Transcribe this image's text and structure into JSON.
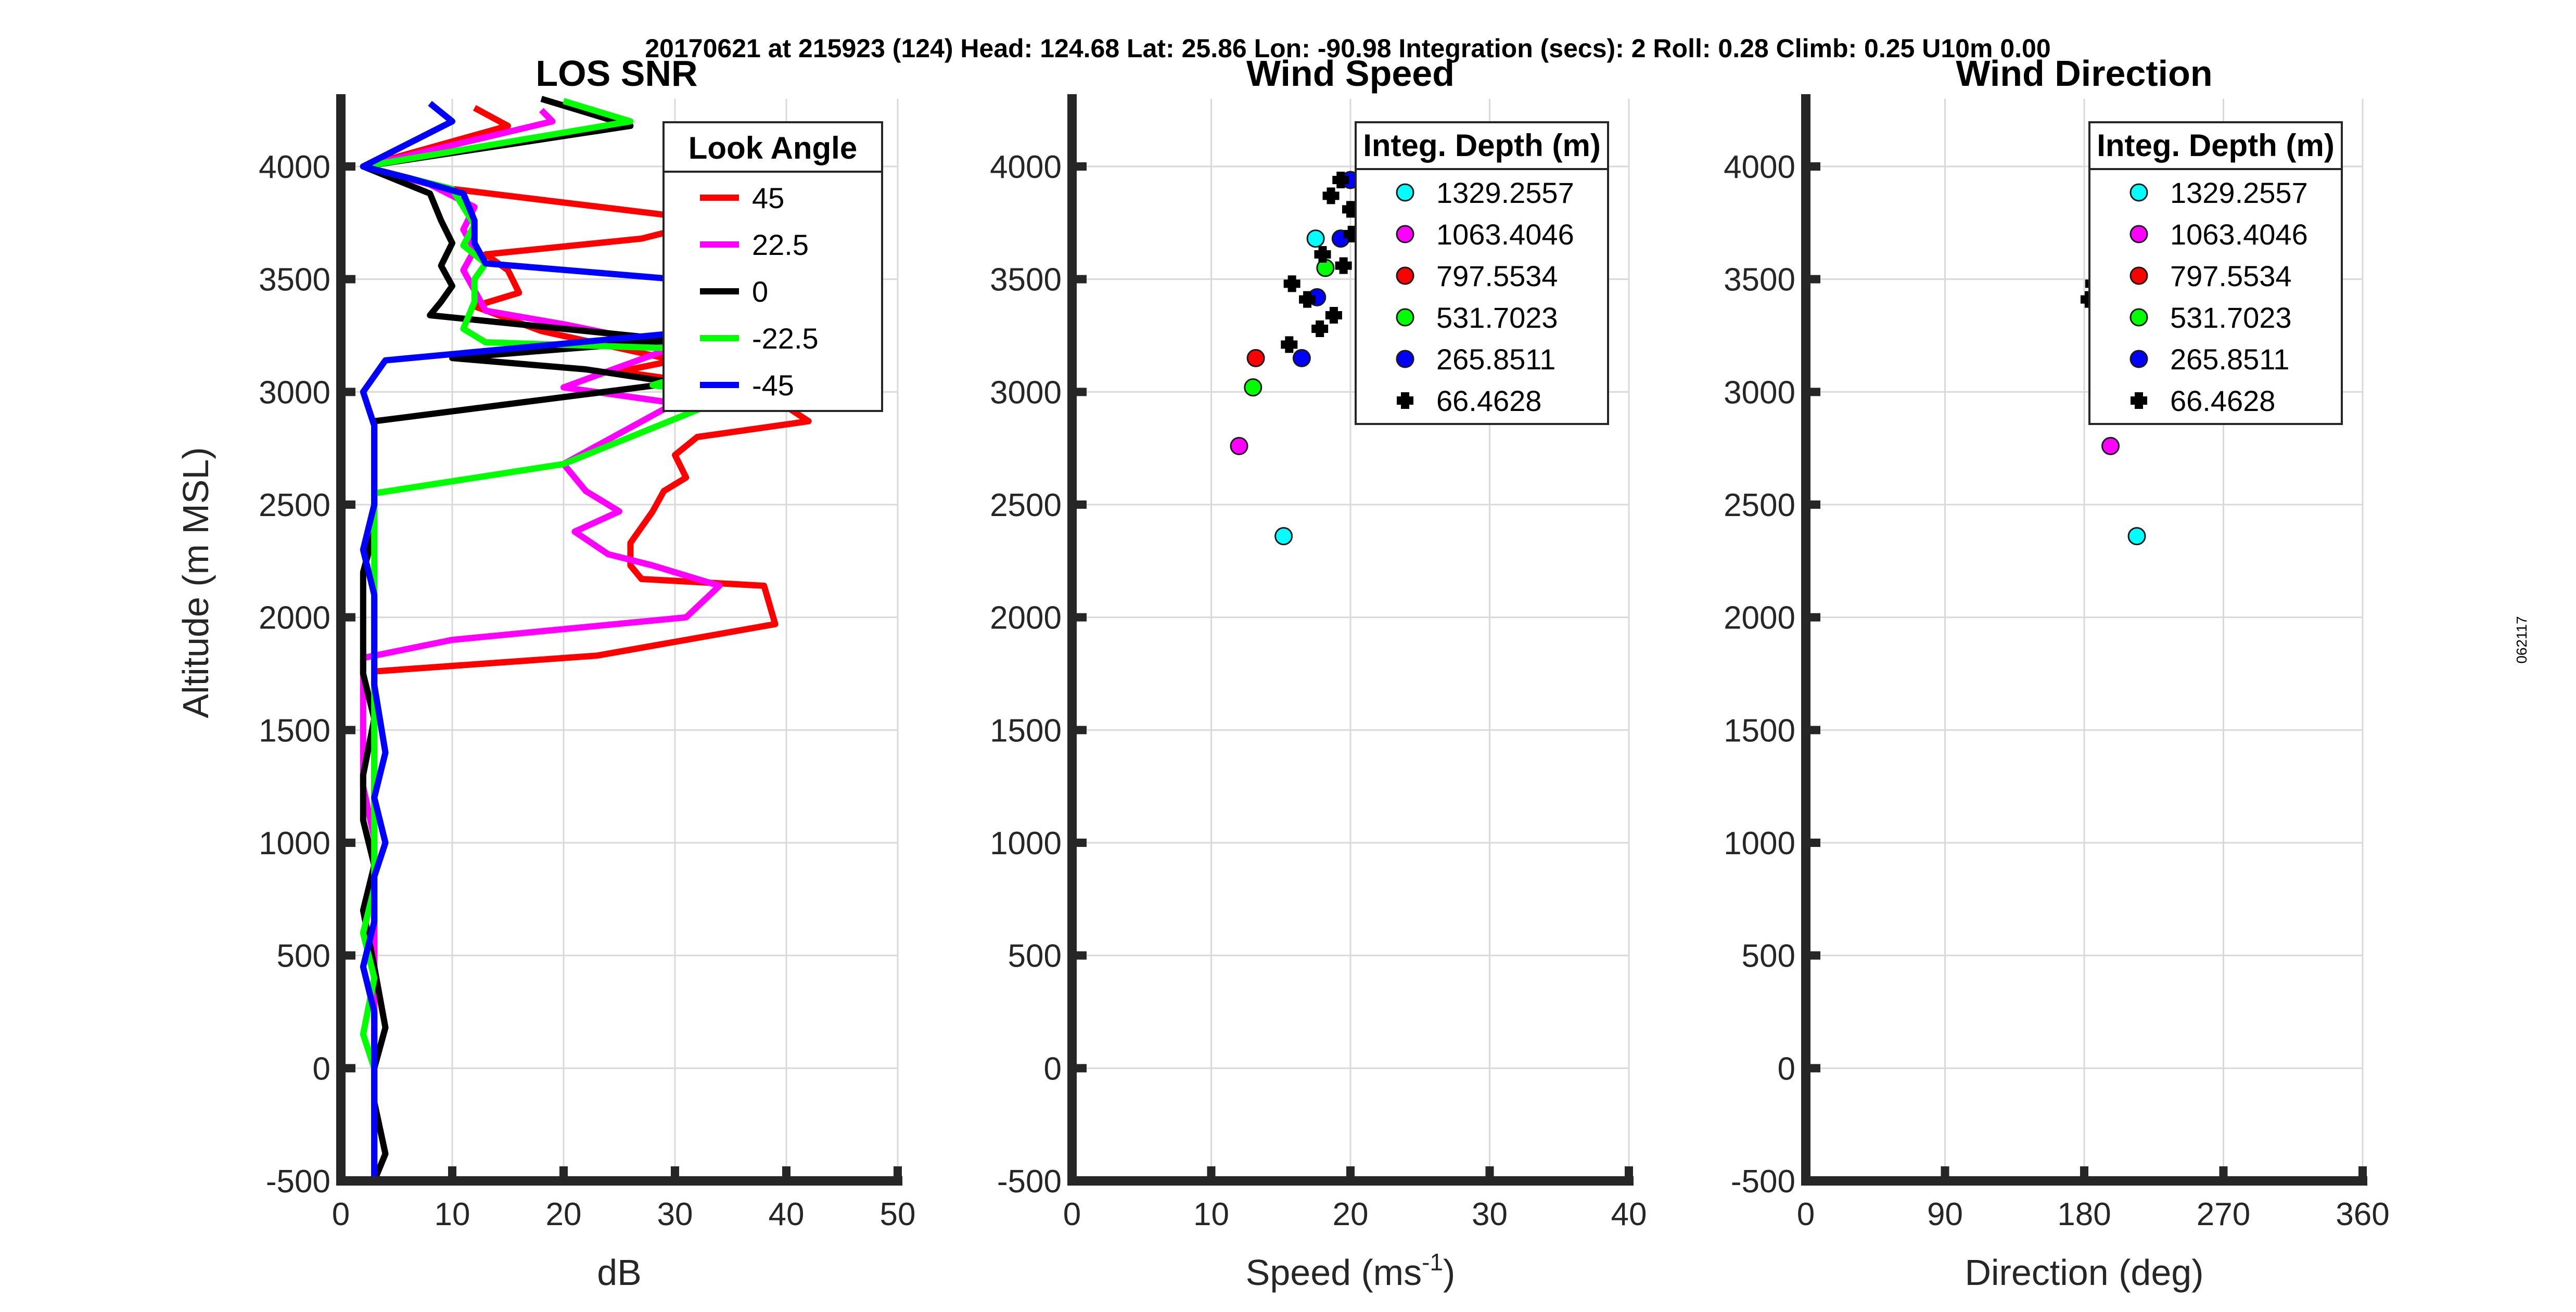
{
  "suptitle": "20170621 at 215923 (124)  Head: 124.68  Lat: 25.86  Lon: -90.98  Integration (secs): 2  Roll: 0.28  Climb: 0.25  U10m 0.00",
  "side_label": "062117",
  "chart_data": [
    {
      "type": "line",
      "title": "LOS SNR",
      "xlabel": "dB",
      "ylabel": "Altitude (m MSL)",
      "xlim": [
        0,
        50
      ],
      "ylim": [
        -500,
        4300
      ],
      "xticks": [
        "0",
        "10",
        "20",
        "30",
        "40",
        "50"
      ],
      "yticks": [
        "-500",
        "0",
        "500",
        "1000",
        "1500",
        "2000",
        "2500",
        "3000",
        "3500",
        "4000"
      ],
      "legend_title": "Look Angle",
      "series": [
        {
          "name": "45",
          "color": "#ff0000",
          "points": [
            [
              12,
              4260
            ],
            [
              15,
              4180
            ],
            [
              2,
              4000
            ],
            [
              10,
              3900
            ],
            [
              30,
              3780
            ],
            [
              31,
              3730
            ],
            [
              27,
              3680
            ],
            [
              13,
              3610
            ],
            [
              15,
              3540
            ],
            [
              16,
              3440
            ],
            [
              12,
              3380
            ],
            [
              18,
              3270
            ],
            [
              30,
              3140
            ],
            [
              25,
              3090
            ],
            [
              38,
              3000
            ],
            [
              42,
              2870
            ],
            [
              32,
              2800
            ],
            [
              30,
              2720
            ],
            [
              31,
              2620
            ],
            [
              29,
              2560
            ],
            [
              28,
              2470
            ],
            [
              26,
              2330
            ],
            [
              26,
              2230
            ],
            [
              27,
              2170
            ],
            [
              38,
              2140
            ],
            [
              39,
              1970
            ],
            [
              23,
              1830
            ],
            [
              3,
              1760
            ],
            [
              3,
              1500
            ],
            [
              3,
              1300
            ],
            [
              3,
              1020
            ],
            [
              3,
              800
            ],
            [
              3,
              600
            ],
            [
              3,
              430
            ],
            [
              3,
              200
            ],
            [
              3,
              0
            ],
            [
              3,
              -200
            ],
            [
              3,
              -500
            ]
          ]
        },
        {
          "name": "22.5",
          "color": "#ff00ff",
          "points": [
            [
              18,
              4250
            ],
            [
              19,
              4200
            ],
            [
              2,
              4000
            ],
            [
              8,
              3920
            ],
            [
              12,
              3820
            ],
            [
              11,
              3720
            ],
            [
              12,
              3630
            ],
            [
              11,
              3540
            ],
            [
              12,
              3450
            ],
            [
              13,
              3360
            ],
            [
              20,
              3300
            ],
            [
              30,
              3200
            ],
            [
              20,
              3020
            ],
            [
              30,
              2950
            ],
            [
              20,
              2680
            ],
            [
              22,
              2560
            ],
            [
              25,
              2470
            ],
            [
              21,
              2380
            ],
            [
              24,
              2280
            ],
            [
              28,
              2230
            ],
            [
              34,
              2140
            ],
            [
              31,
              2000
            ],
            [
              10,
              1900
            ],
            [
              2,
              1820
            ],
            [
              2,
              1500
            ],
            [
              2,
              1250
            ],
            [
              3,
              1020
            ],
            [
              3,
              800
            ],
            [
              3,
              550
            ],
            [
              3,
              360
            ],
            [
              3,
              100
            ],
            [
              3,
              -200
            ],
            [
              3,
              -500
            ]
          ]
        },
        {
          "name": "0",
          "color": "#000000",
          "points": [
            [
              18,
              4300
            ],
            [
              26,
              4180
            ],
            [
              2,
              4000
            ],
            [
              8,
              3880
            ],
            [
              9,
              3760
            ],
            [
              10,
              3660
            ],
            [
              9,
              3560
            ],
            [
              10,
              3470
            ],
            [
              9,
              3400
            ],
            [
              8,
              3340
            ],
            [
              20,
              3280
            ],
            [
              30,
              3230
            ],
            [
              10,
              3150
            ],
            [
              22,
              3100
            ],
            [
              30,
              3040
            ],
            [
              3,
              2870
            ],
            [
              3,
              2700
            ],
            [
              3,
              2500
            ],
            [
              3,
              2380
            ],
            [
              2,
              2200
            ],
            [
              2,
              1950
            ],
            [
              2,
              1750
            ],
            [
              3,
              1550
            ],
            [
              2,
              1300
            ],
            [
              2,
              1100
            ],
            [
              3,
              900
            ],
            [
              2,
              700
            ],
            [
              3,
              450
            ],
            [
              4,
              180
            ],
            [
              3,
              0
            ],
            [
              3,
              -150
            ],
            [
              4,
              -380
            ],
            [
              3,
              -500
            ]
          ]
        },
        {
          "name": "-22.5",
          "color": "#00ff00",
          "points": [
            [
              20,
              4290
            ],
            [
              26,
              4200
            ],
            [
              2,
              4000
            ],
            [
              10,
              3900
            ],
            [
              12,
              3740
            ],
            [
              11,
              3650
            ],
            [
              13,
              3570
            ],
            [
              12,
              3500
            ],
            [
              12,
              3400
            ],
            [
              11,
              3280
            ],
            [
              13,
              3220
            ],
            [
              38,
              3180
            ],
            [
              28,
              3030
            ],
            [
              35,
              2980
            ],
            [
              20,
              2680
            ],
            [
              3,
              2550
            ],
            [
              3,
              2300
            ],
            [
              3,
              2100
            ],
            [
              3,
              1900
            ],
            [
              3,
              1700
            ],
            [
              3,
              1450
            ],
            [
              3,
              1200
            ],
            [
              3,
              1000
            ],
            [
              3,
              800
            ],
            [
              2,
              600
            ],
            [
              3,
              400
            ],
            [
              2,
              150
            ],
            [
              3,
              0
            ],
            [
              3,
              -250
            ],
            [
              3,
              -500
            ]
          ]
        },
        {
          "name": "-45",
          "color": "#0000ff",
          "points": [
            [
              8,
              4280
            ],
            [
              10,
              4200
            ],
            [
              2,
              4000
            ],
            [
              6,
              3950
            ],
            [
              11,
              3880
            ],
            [
              12,
              3760
            ],
            [
              12,
              3660
            ],
            [
              13,
              3570
            ],
            [
              30,
              3500
            ],
            [
              30,
              3260
            ],
            [
              4,
              3140
            ],
            [
              2,
              3000
            ],
            [
              3,
              2850
            ],
            [
              3,
              2700
            ],
            [
              3,
              2500
            ],
            [
              2,
              2300
            ],
            [
              3,
              2100
            ],
            [
              3,
              1900
            ],
            [
              3,
              1700
            ],
            [
              4,
              1400
            ],
            [
              3,
              1200
            ],
            [
              4,
              1000
            ],
            [
              3,
              850
            ],
            [
              3,
              650
            ],
            [
              2,
              450
            ],
            [
              3,
              250
            ],
            [
              3,
              50
            ],
            [
              3,
              -150
            ],
            [
              3,
              -350
            ],
            [
              3,
              -500
            ]
          ]
        }
      ]
    },
    {
      "type": "scatter",
      "title": "Wind Speed",
      "xlabel": "Speed (ms",
      "xlabel_sup": "-1",
      "xlabel_end": ")",
      "xlim": [
        0,
        40
      ],
      "ylim": [
        -500,
        4300
      ],
      "xticks": [
        "0",
        "10",
        "20",
        "30",
        "40"
      ],
      "yticks": [
        "-500",
        "0",
        "500",
        "1000",
        "1500",
        "2000",
        "2500",
        "3000",
        "3500",
        "4000"
      ],
      "legend_title": "Integ. Depth (m)",
      "series": [
        {
          "name": "1329.2557",
          "color": "#00ffff",
          "marker": "circle",
          "points": [
            [
              17.5,
              3680
            ],
            [
              15.2,
              2360
            ]
          ]
        },
        {
          "name": "1063.4046",
          "color": "#ff00ff",
          "marker": "circle",
          "points": [
            [
              12.0,
              2760
            ]
          ]
        },
        {
          "name": "797.5534",
          "color": "#ff0000",
          "marker": "circle",
          "points": [
            [
              13.2,
              3150
            ]
          ]
        },
        {
          "name": "531.7023",
          "color": "#00ff00",
          "marker": "circle",
          "points": [
            [
              18.2,
              3550
            ],
            [
              13.0,
              3020
            ]
          ]
        },
        {
          "name": "265.8511",
          "color": "#0000ff",
          "marker": "circle",
          "points": [
            [
              20.0,
              3940
            ],
            [
              19.3,
              3680
            ],
            [
              17.6,
              3420
            ],
            [
              16.5,
              3150
            ]
          ]
        },
        {
          "name": "66.4628",
          "color": "#000000",
          "marker": "plus",
          "points": [
            [
              19.3,
              3940
            ],
            [
              18.6,
              3870
            ],
            [
              20.0,
              3810
            ],
            [
              20.1,
              3700
            ],
            [
              18.0,
              3610
            ],
            [
              19.5,
              3560
            ],
            [
              15.8,
              3480
            ],
            [
              16.9,
              3410
            ],
            [
              18.8,
              3340
            ],
            [
              17.8,
              3280
            ],
            [
              15.6,
              3210
            ]
          ]
        }
      ]
    },
    {
      "type": "scatter",
      "title": "Wind Direction",
      "xlabel": "Direction (deg)",
      "xlim": [
        0,
        360
      ],
      "ylim": [
        -500,
        4300
      ],
      "xticks": [
        "0",
        "90",
        "180",
        "270",
        "360"
      ],
      "yticks": [
        "-500",
        "0",
        "500",
        "1000",
        "1500",
        "2000",
        "2500",
        "3000",
        "3500",
        "4000"
      ],
      "legend_title": "Integ. Depth (m)",
      "series": [
        {
          "name": "1329.2557",
          "color": "#00ffff",
          "marker": "circle",
          "points": [
            [
              214,
              2360
            ]
          ]
        },
        {
          "name": "1063.4046",
          "color": "#ff00ff",
          "marker": "circle",
          "points": [
            [
              197,
              2760
            ]
          ]
        },
        {
          "name": "797.5534",
          "color": "#ff0000",
          "marker": "circle",
          "points": []
        },
        {
          "name": "531.7023",
          "color": "#00ff00",
          "marker": "circle",
          "points": []
        },
        {
          "name": "265.8511",
          "color": "#0000ff",
          "marker": "circle",
          "points": []
        },
        {
          "name": "66.4628",
          "color": "#000000",
          "marker": "plus",
          "points": [
            [
              183,
              3410
            ],
            [
              186,
              3480
            ]
          ]
        }
      ]
    }
  ]
}
